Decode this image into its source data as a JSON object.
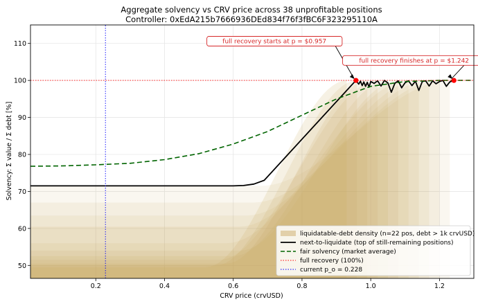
{
  "chart_data": {
    "type": "line",
    "title": "Aggregate solvency vs CRV price across 38 unprofitable positions",
    "subtitle": "Controller: 0xEdA215b7666936DEd834f76f3fBC6F323295110A",
    "xlabel": "CRV price (crvUSD)",
    "ylabel": "Solvency: Σ value / Σ debt   [%]",
    "xlim": [
      0.01,
      1.3
    ],
    "ylim": [
      46.5,
      115
    ],
    "xticks": [
      0.2,
      0.4,
      0.6,
      0.8,
      1.0,
      1.2
    ],
    "xtick_labels": [
      "0.2",
      "0.4",
      "0.6",
      "0.8",
      "1.0",
      "1.2"
    ],
    "yticks": [
      50,
      60,
      70,
      80,
      90,
      100,
      110
    ],
    "ytick_labels": [
      "50",
      "60",
      "70",
      "80",
      "90",
      "100",
      "110"
    ],
    "grid": true,
    "legend_position": "bottom-right",
    "series": [
      {
        "name": "next-to-liquidate (top of still-remaining positions)",
        "style": "solid",
        "color": "#000000",
        "x": [
          0.01,
          0.2,
          0.4,
          0.6,
          0.63,
          0.66,
          0.69,
          0.957,
          0.965,
          0.97,
          0.975,
          0.98,
          0.985,
          0.99,
          0.995,
          1.0,
          1.01,
          1.02,
          1.03,
          1.04,
          1.05,
          1.06,
          1.07,
          1.08,
          1.09,
          1.1,
          1.11,
          1.12,
          1.13,
          1.14,
          1.15,
          1.16,
          1.17,
          1.18,
          1.19,
          1.2,
          1.21,
          1.22,
          1.23,
          1.242
        ],
        "y": [
          71.5,
          71.5,
          71.5,
          71.5,
          71.6,
          72.0,
          73.0,
          100.0,
          99.0,
          99.8,
          98.6,
          99.6,
          98.4,
          99.5,
          98.2,
          99.7,
          99.2,
          99.9,
          98.5,
          100.0,
          99.3,
          96.8,
          99.2,
          99.9,
          98.0,
          99.4,
          99.9,
          98.6,
          99.8,
          97.3,
          99.7,
          99.9,
          98.5,
          99.9,
          99.1,
          99.7,
          100.0,
          98.4,
          99.6,
          100.0
        ]
      },
      {
        "name": "fair solvency (market average)",
        "style": "dashed",
        "color": "#006400",
        "x": [
          0.01,
          0.1,
          0.2,
          0.3,
          0.4,
          0.5,
          0.6,
          0.7,
          0.8,
          0.9,
          1.0,
          1.1,
          1.2,
          1.3
        ],
        "y": [
          76.8,
          76.9,
          77.2,
          77.6,
          78.6,
          80.2,
          82.8,
          86.2,
          90.6,
          95.0,
          98.4,
          99.7,
          100.0,
          100.0
        ]
      },
      {
        "name": "full recovery (100%)",
        "style": "dotted",
        "color": "#ff0000",
        "x": [
          0.01,
          1.3
        ],
        "y": [
          100,
          100
        ]
      },
      {
        "name": "current p_o = 0.228",
        "style": "dotted",
        "color": "#0000ff",
        "x": [
          0.228,
          0.228
        ],
        "y": [
          46.5,
          115
        ]
      }
    ],
    "density": {
      "name": "liquidatable-debt density (n=22 pos, debt > 1k crvUSD)",
      "color": "#c8a55a",
      "bands": [
        {
          "base": 49.5,
          "knee": 0.52,
          "end": 0.93,
          "alpha": 0.16
        },
        {
          "base": 50.0,
          "knee": 0.55,
          "end": 0.96,
          "alpha": 0.14
        },
        {
          "base": 50.5,
          "knee": 0.58,
          "end": 0.99,
          "alpha": 0.14
        },
        {
          "base": 51.5,
          "knee": 0.56,
          "end": 1.02,
          "alpha": 0.13
        },
        {
          "base": 52.5,
          "knee": 0.6,
          "end": 1.05,
          "alpha": 0.12
        },
        {
          "base": 54.0,
          "knee": 0.62,
          "end": 1.08,
          "alpha": 0.12
        },
        {
          "base": 56.0,
          "knee": 0.58,
          "end": 1.11,
          "alpha": 0.11
        },
        {
          "base": 60.5,
          "knee": 0.62,
          "end": 1.14,
          "alpha": 0.11
        },
        {
          "base": 63.5,
          "knee": 0.64,
          "end": 1.17,
          "alpha": 0.1
        },
        {
          "base": 67.0,
          "knee": 0.66,
          "end": 1.2,
          "alpha": 0.1
        },
        {
          "base": 71.5,
          "knee": 0.68,
          "end": 1.23,
          "alpha": 0.09
        }
      ]
    },
    "annotations": [
      {
        "text": "full recovery starts at p = $0.957",
        "x": 0.957,
        "y": 100,
        "label_x": 0.72,
        "label_y": 110.6
      },
      {
        "text": "full recovery finishes at p = $1.242",
        "x": 1.242,
        "y": 100,
        "label_x": 1.126,
        "label_y": 105.4
      }
    ],
    "legend_entries": [
      "liquidatable-debt density (n=22 pos, debt > 1k crvUSD)",
      "next-to-liquidate (top of still-remaining positions)",
      "fair solvency (market average)",
      "full recovery (100%)",
      "current p_o = 0.228"
    ]
  }
}
